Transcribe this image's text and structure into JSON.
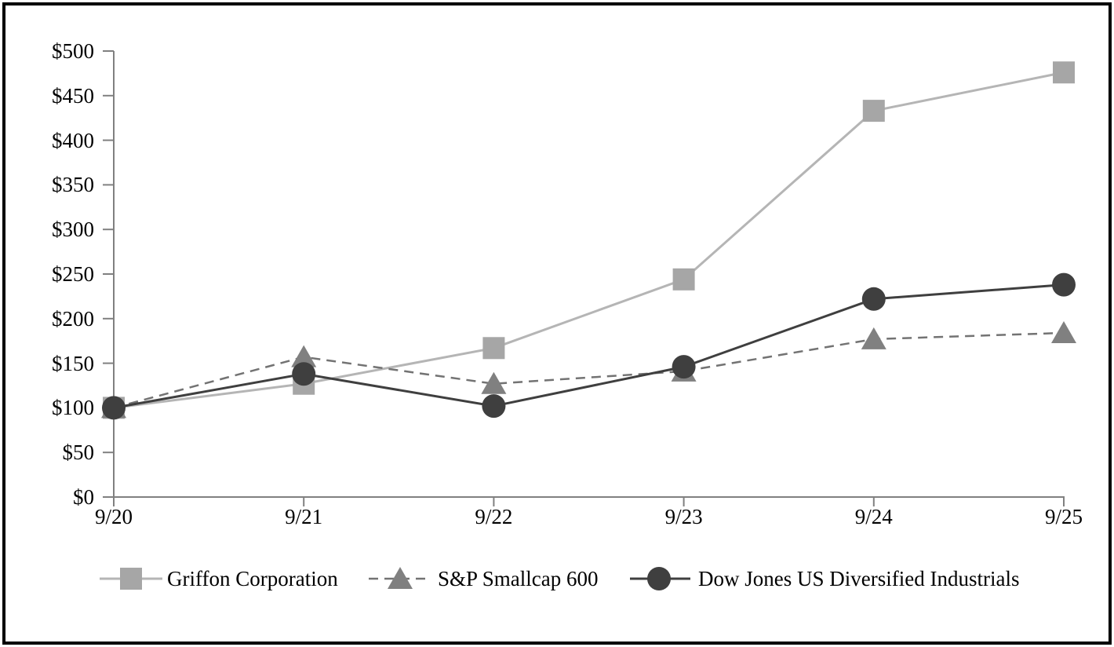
{
  "chart_data": {
    "type": "line",
    "title": "",
    "xlabel": "",
    "ylabel": "",
    "categories": [
      "9/20",
      "9/21",
      "9/22",
      "9/23",
      "9/24",
      "9/25"
    ],
    "y_ticks": [
      "$0",
      "$50",
      "$100",
      "$150",
      "$200",
      "$250",
      "$300",
      "$350",
      "$400",
      "$450",
      "$500"
    ],
    "ylim": [
      0,
      500
    ],
    "y_tick_step": 50,
    "grid": false,
    "legend_position": "bottom",
    "axis_color": "#808080",
    "series": [
      {
        "name": "Griffon Corporation",
        "marker": "square",
        "line_style": "solid",
        "color": "#a6a6a6",
        "line_color": "#b5b5b5",
        "values": [
          100,
          127,
          167,
          244,
          433,
          476
        ]
      },
      {
        "name": "S&P Smallcap 600",
        "marker": "triangle",
        "line_style": "dashed",
        "color": "#808080",
        "line_color": "#737373",
        "values": [
          100,
          157,
          127,
          141,
          177,
          184
        ]
      },
      {
        "name": "Dow Jones US Diversified Industrials",
        "marker": "circle",
        "line_style": "solid",
        "color": "#3f3f3f",
        "line_color": "#3f3f3f",
        "values": [
          100,
          138,
          102,
          146,
          222,
          238
        ]
      }
    ]
  }
}
